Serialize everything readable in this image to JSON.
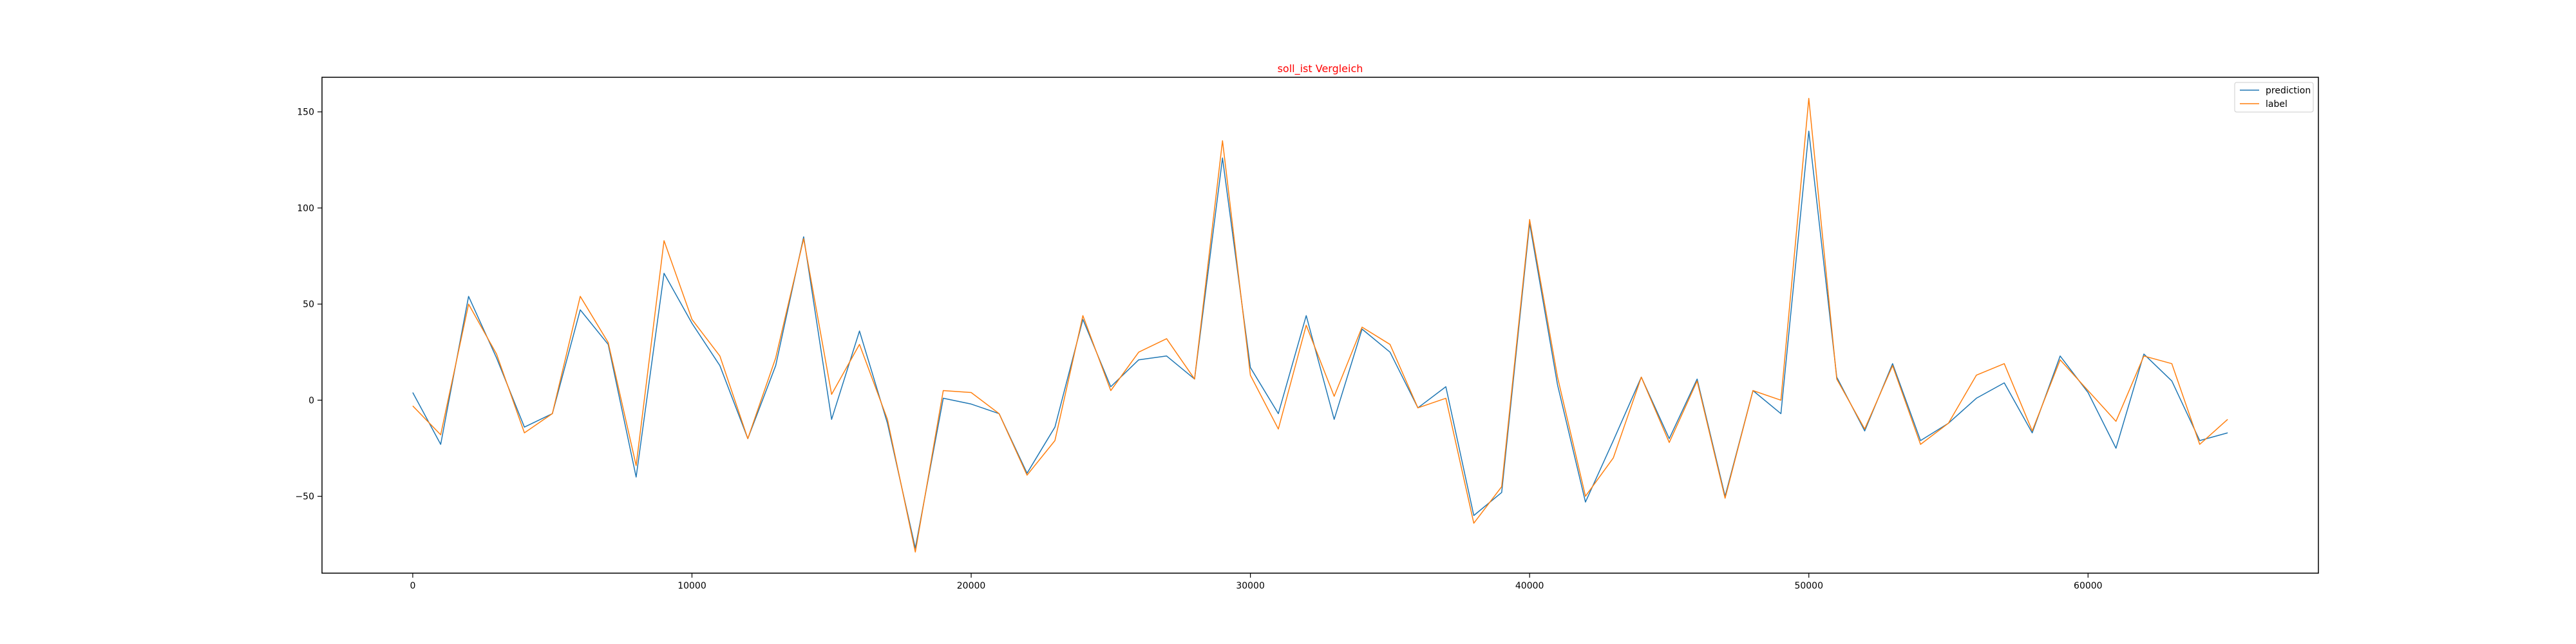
{
  "chart_data": {
    "type": "line",
    "title": "soll_ist Vergleich",
    "title_color": "#ff0000",
    "xlabel": "",
    "ylabel": "",
    "xlim": [
      -3250,
      68250
    ],
    "ylim": [
      -90,
      168
    ],
    "xticks": [
      0,
      10000,
      20000,
      30000,
      40000,
      50000,
      60000
    ],
    "yticks": [
      -50,
      0,
      50,
      100,
      150
    ],
    "grid": false,
    "legend_position": "top-right",
    "x": [
      0,
      1000,
      2000,
      3000,
      4000,
      5000,
      6000,
      7000,
      8000,
      9000,
      10000,
      11000,
      12000,
      13000,
      14000,
      15000,
      16000,
      17000,
      18000,
      19000,
      20000,
      21000,
      22000,
      23000,
      24000,
      25000,
      26000,
      27000,
      28000,
      29000,
      30000,
      31000,
      32000,
      33000,
      34000,
      35000,
      36000,
      37000,
      38000,
      39000,
      40000,
      41000,
      42000,
      43000,
      44000,
      45000,
      46000,
      47000,
      48000,
      49000,
      50000,
      51000,
      52000,
      53000,
      54000,
      55000,
      56000,
      57000,
      58000,
      59000,
      60000,
      61000,
      62000,
      63000,
      64000,
      65000
    ],
    "series": [
      {
        "name": "prediction",
        "color": "#1f77b4",
        "values": [
          4,
          -23,
          54,
          22,
          -14,
          -7,
          47,
          29,
          -40,
          66,
          40,
          18,
          -20,
          18,
          85,
          -10,
          36,
          -12,
          -77,
          1,
          -2,
          -7,
          -38,
          -14,
          42,
          7,
          21,
          23,
          11,
          126,
          17,
          -7,
          44,
          -10,
          37,
          25,
          -4,
          7,
          -60,
          -48,
          92,
          8,
          -53,
          -21,
          12,
          -20,
          11,
          -50,
          5,
          -7,
          140,
          12,
          -16,
          19,
          -21,
          -12,
          1,
          9,
          -17,
          23,
          4,
          -25,
          24,
          10,
          -21,
          -17
        ]
      },
      {
        "name": "label",
        "color": "#ff7f0e",
        "values": [
          -3,
          -18,
          50,
          24,
          -17,
          -7,
          54,
          30,
          -34,
          83,
          42,
          23,
          -20,
          22,
          84,
          3,
          29,
          -10,
          -79,
          5,
          4,
          -7,
          -39,
          -21,
          44,
          5,
          25,
          32,
          11,
          135,
          13,
          -15,
          39,
          2,
          38,
          29,
          -4,
          1,
          -64,
          -45,
          94,
          12,
          -50,
          -30,
          12,
          -22,
          10,
          -51,
          5,
          0,
          157,
          11,
          -15,
          18,
          -23,
          -12,
          13,
          19,
          -16,
          21,
          5,
          -11,
          23,
          19,
          -23,
          -10
        ]
      }
    ]
  }
}
